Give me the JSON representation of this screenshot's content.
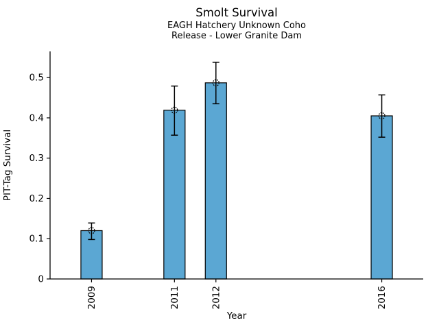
{
  "chart_data": {
    "type": "bar",
    "title": "Smolt Survival",
    "subtitle": [
      "EAGH Hatchery Unknown Coho",
      "Release - Lower Granite Dam"
    ],
    "xlabel": "Year",
    "ylabel": "PIT-Tag Survival",
    "x_range": [
      2008,
      2017
    ],
    "ylim": [
      0,
      0.565
    ],
    "yticks": [
      {
        "value": 0,
        "label": "0"
      },
      {
        "value": 0.1,
        "label": "0.1"
      },
      {
        "value": 0.2,
        "label": "0.2"
      },
      {
        "value": 0.3,
        "label": "0.3"
      },
      {
        "value": 0.4,
        "label": "0.4"
      },
      {
        "value": 0.5,
        "label": "0.5"
      }
    ],
    "points": [
      {
        "year": 2009,
        "label": "2009",
        "value": 0.12,
        "err_low": 0.098,
        "err_high": 0.139
      },
      {
        "year": 2011,
        "label": "2011",
        "value": 0.419,
        "err_low": 0.357,
        "err_high": 0.479
      },
      {
        "year": 2012,
        "label": "2012",
        "value": 0.487,
        "err_low": 0.435,
        "err_high": 0.538
      },
      {
        "year": 2016,
        "label": "2016",
        "value": 0.405,
        "err_low": 0.352,
        "err_high": 0.457
      }
    ],
    "grid": false,
    "legend": null,
    "bar_color": "#5BA7D3",
    "bar_edge_color": "#000000",
    "error_bar_color": "#000000",
    "marker_style": "open-circle-dotted"
  }
}
